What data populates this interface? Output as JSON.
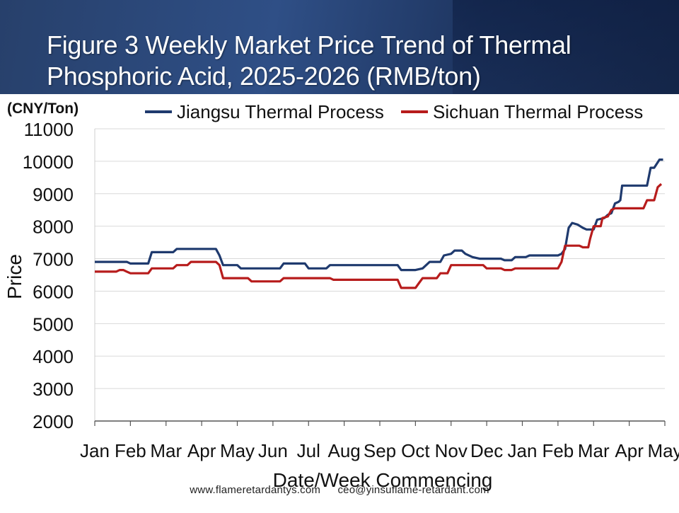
{
  "page": {
    "title": "Figure 3 Weekly Market Price Trend of Thermal Phosphoric Acid, 2025-2026 (RMB/ton)",
    "footer_site": "www.flameretardantys.com",
    "footer_email": "ceo@yinsuflame-retardant.com",
    "header_color": "#2a4677"
  },
  "chart_data": {
    "type": "line",
    "unit_label": "(CNY/Ton)",
    "ylabel": "Price",
    "xlabel": "Date/Week Commencing",
    "ylim": [
      2000,
      11000
    ],
    "yticks": [
      2000,
      3000,
      4000,
      5000,
      6000,
      7000,
      8000,
      9000,
      10000,
      11000
    ],
    "grid": "horizontal",
    "legend_position": "top",
    "categories": [
      "Jan",
      "Feb",
      "Mar",
      "Apr",
      "May",
      "Jun",
      "Jul",
      "Aug",
      "Sep",
      "Oct",
      "Nov",
      "Dec",
      "Jan",
      "Feb",
      "Mar",
      "Apr",
      "May"
    ],
    "series": [
      {
        "name": "Jiangsu Thermal Process",
        "color": "#1f3a6e",
        "points": [
          [
            0,
            6900
          ],
          [
            0.9,
            6900
          ],
          [
            1.0,
            6850
          ],
          [
            1.5,
            6850
          ],
          [
            1.6,
            7200
          ],
          [
            2.2,
            7200
          ],
          [
            2.3,
            7300
          ],
          [
            3.4,
            7300
          ],
          [
            3.5,
            7100
          ],
          [
            3.6,
            6800
          ],
          [
            4.0,
            6800
          ],
          [
            4.1,
            6700
          ],
          [
            5.2,
            6700
          ],
          [
            5.3,
            6850
          ],
          [
            5.9,
            6850
          ],
          [
            6.0,
            6700
          ],
          [
            6.5,
            6700
          ],
          [
            6.6,
            6800
          ],
          [
            7.4,
            6800
          ],
          [
            8.5,
            6800
          ],
          [
            8.6,
            6650
          ],
          [
            9.0,
            6650
          ],
          [
            9.2,
            6700
          ],
          [
            9.4,
            6900
          ],
          [
            9.7,
            6900
          ],
          [
            9.8,
            7100
          ],
          [
            10.0,
            7150
          ],
          [
            10.1,
            7250
          ],
          [
            10.3,
            7250
          ],
          [
            10.4,
            7150
          ],
          [
            10.6,
            7050
          ],
          [
            10.8,
            7000
          ],
          [
            11.4,
            7000
          ],
          [
            11.5,
            6950
          ],
          [
            11.7,
            6950
          ],
          [
            11.8,
            7050
          ],
          [
            12.1,
            7050
          ],
          [
            12.2,
            7100
          ],
          [
            13.0,
            7100
          ],
          [
            13.1,
            7150
          ],
          [
            13.2,
            7300
          ],
          [
            13.3,
            7950
          ],
          [
            13.4,
            8100
          ],
          [
            13.55,
            8050
          ],
          [
            13.7,
            7950
          ],
          [
            13.8,
            7900
          ],
          [
            14.0,
            7900
          ],
          [
            14.1,
            8200
          ],
          [
            14.3,
            8250
          ],
          [
            14.4,
            8350
          ],
          [
            14.5,
            8400
          ],
          [
            14.6,
            8700
          ],
          [
            14.7,
            8750
          ],
          [
            14.75,
            8800
          ],
          [
            14.8,
            9250
          ],
          [
            15.5,
            9250
          ],
          [
            15.6,
            9800
          ],
          [
            15.7,
            9800
          ],
          [
            15.85,
            10050
          ],
          [
            15.95,
            10050
          ]
        ]
      },
      {
        "name": "Sichuan Thermal Process",
        "color": "#b71c1c",
        "points": [
          [
            0,
            6600
          ],
          [
            0.6,
            6600
          ],
          [
            0.7,
            6650
          ],
          [
            0.8,
            6650
          ],
          [
            0.9,
            6600
          ],
          [
            1.0,
            6550
          ],
          [
            1.5,
            6550
          ],
          [
            1.6,
            6700
          ],
          [
            2.2,
            6700
          ],
          [
            2.3,
            6800
          ],
          [
            2.6,
            6800
          ],
          [
            2.7,
            6900
          ],
          [
            3.4,
            6900
          ],
          [
            3.5,
            6800
          ],
          [
            3.6,
            6400
          ],
          [
            4.3,
            6400
          ],
          [
            4.4,
            6300
          ],
          [
            5.2,
            6300
          ],
          [
            5.3,
            6400
          ],
          [
            6.6,
            6400
          ],
          [
            6.7,
            6350
          ],
          [
            8.5,
            6350
          ],
          [
            8.6,
            6100
          ],
          [
            9.0,
            6100
          ],
          [
            9.1,
            6250
          ],
          [
            9.2,
            6400
          ],
          [
            9.6,
            6400
          ],
          [
            9.7,
            6550
          ],
          [
            9.9,
            6550
          ],
          [
            10.0,
            6800
          ],
          [
            10.9,
            6800
          ],
          [
            11.0,
            6700
          ],
          [
            11.4,
            6700
          ],
          [
            11.5,
            6650
          ],
          [
            11.7,
            6650
          ],
          [
            11.8,
            6700
          ],
          [
            13.0,
            6700
          ],
          [
            13.1,
            6900
          ],
          [
            13.2,
            7400
          ],
          [
            13.6,
            7400
          ],
          [
            13.7,
            7350
          ],
          [
            13.85,
            7350
          ],
          [
            13.9,
            7600
          ],
          [
            14.0,
            8000
          ],
          [
            14.2,
            8000
          ],
          [
            14.25,
            8250
          ],
          [
            14.4,
            8300
          ],
          [
            14.5,
            8500
          ],
          [
            14.6,
            8550
          ],
          [
            15.4,
            8550
          ],
          [
            15.5,
            8800
          ],
          [
            15.7,
            8800
          ],
          [
            15.8,
            9200
          ],
          [
            15.9,
            9300
          ]
        ]
      }
    ]
  }
}
